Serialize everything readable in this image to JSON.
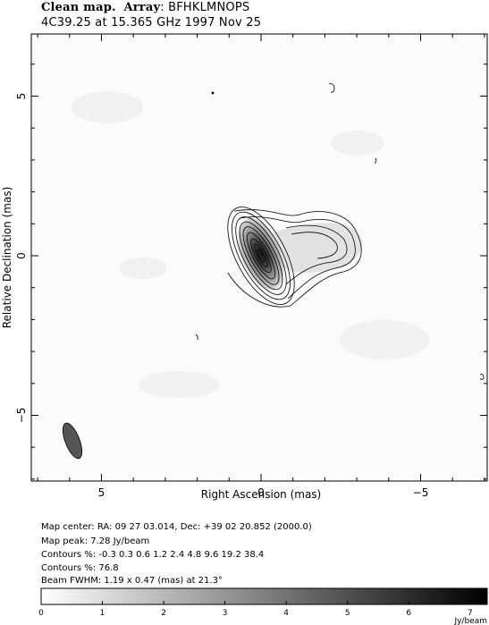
{
  "title": {
    "prefix": "Clean map.",
    "array_key": "Array",
    "array_value": ": BFHKLMNOPS",
    "line2": "4C39.25 at 15.365 GHz 1997 Nov 25"
  },
  "info": {
    "map_center": "Map center:  RA: 09 27 03.014,  Dec: +39 02 20.852 (2000.0)",
    "map_peak": "Map peak: 7.28 Jy/beam",
    "contours": "Contours %: -0.3 0.3 0.6 1.2 2.4 4.8 9.6 19.2 38.4",
    "contours2": "Contours %: 76.8",
    "beam": "Beam FWHM: 1.19 x 0.47 (mas) at 21.3°"
  },
  "chart_data": {
    "type": "contour",
    "xlabel": "Right Ascension   (mas)",
    "ylabel": "Relative Declination   (mas)",
    "xlim": [
      7,
      -7
    ],
    "ylim": [
      -7,
      7
    ],
    "xticks": [
      5,
      0,
      -5
    ],
    "yticks": [
      5,
      0,
      -5
    ],
    "peak_jy_per_beam": 7.28,
    "contour_levels_percent": [
      -0.3,
      0.3,
      0.6,
      1.2,
      2.4,
      4.8,
      9.6,
      19.2,
      38.4,
      76.8
    ],
    "core": {
      "x": 0,
      "y": 0
    },
    "beam": {
      "x": 5.9,
      "y": -5.8,
      "major_mas": 1.19,
      "minor_mas": 0.47,
      "pa_deg": 21.3
    },
    "colorbar": {
      "min": 0,
      "max": 7.28,
      "ticks": [
        "0",
        "1",
        "2",
        "3",
        "4",
        "5",
        "6",
        "7"
      ],
      "unit": "Jy/beam"
    }
  }
}
